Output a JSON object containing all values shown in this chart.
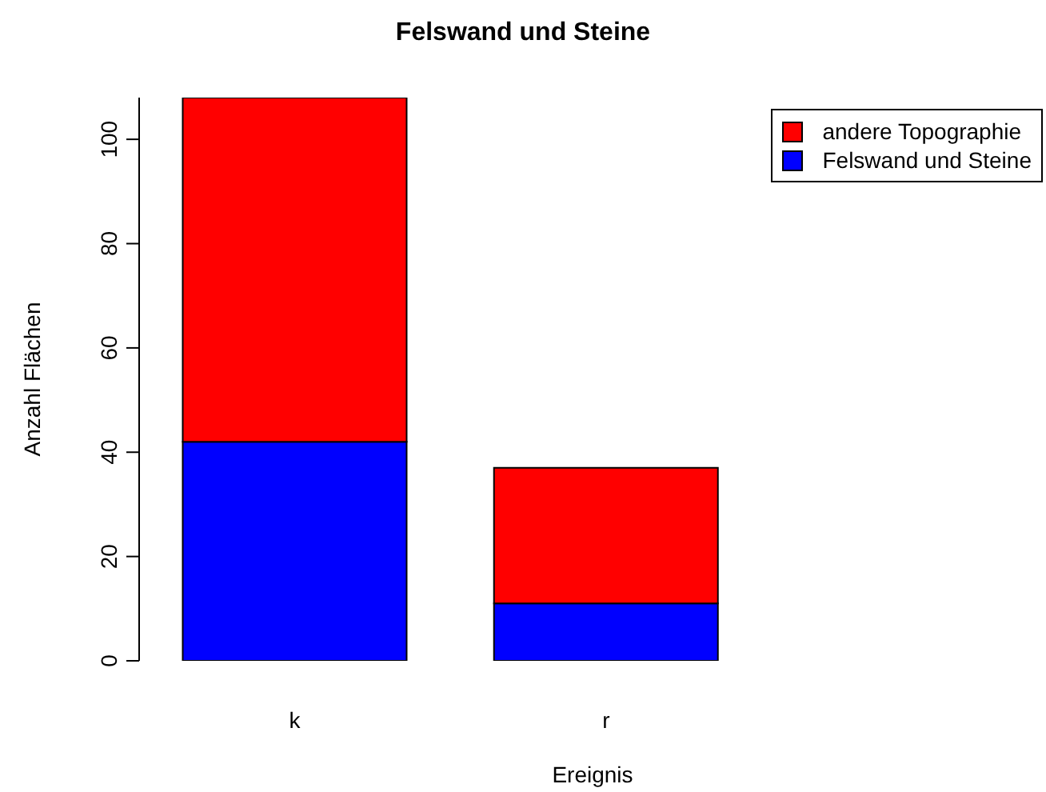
{
  "chart_data": {
    "type": "bar",
    "title": "Felswand und Steine",
    "xlabel": "Ereignis",
    "ylabel": "Anzahl Flächen",
    "categories": [
      "k",
      "r"
    ],
    "stacked": true,
    "ylim": [
      0,
      108
    ],
    "yticks": [
      0,
      20,
      40,
      60,
      80,
      100
    ],
    "grid": false,
    "legend": "top right",
    "series": [
      {
        "name": "Felswand und Steine",
        "color": "#0000ff",
        "values": [
          42,
          11
        ]
      },
      {
        "name": "andere Topographie",
        "color": "#ff0000",
        "values": [
          66,
          26
        ]
      }
    ]
  }
}
